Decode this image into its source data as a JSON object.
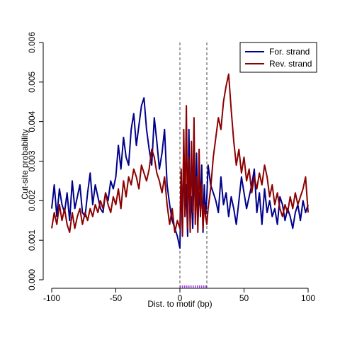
{
  "chart_data": {
    "type": "line",
    "title": "",
    "xlabel": "Dist. to motif (bp)",
    "ylabel": "Cut-site probability",
    "xlim": [
      -100,
      100
    ],
    "ylim": [
      0,
      0.006
    ],
    "xticks": [
      -100,
      -50,
      0,
      50,
      100
    ],
    "xtick_labels": [
      "-100",
      "-50",
      "0",
      "50",
      "100"
    ],
    "yticks": [
      0,
      0.001,
      0.002,
      0.003,
      0.004,
      0.005,
      0.006
    ],
    "ytick_labels": [
      "0.000",
      "0.001",
      "0.002",
      "0.003",
      "0.004",
      "0.005",
      "0.006"
    ],
    "grid": false,
    "legend_position": "top-right",
    "vlines": [
      0,
      21
    ],
    "motif_range": [
      0,
      21
    ],
    "series": [
      {
        "name": "For. strand",
        "color": "#00008b",
        "x": [
          -100,
          -98,
          -96,
          -94,
          -92,
          -90,
          -88,
          -86,
          -84,
          -82,
          -80,
          -78,
          -76,
          -74,
          -72,
          -70,
          -68,
          -66,
          -64,
          -62,
          -60,
          -58,
          -56,
          -54,
          -52,
          -50,
          -48,
          -46,
          -44,
          -42,
          -40,
          -38,
          -36,
          -34,
          -32,
          -30,
          -28,
          -26,
          -24,
          -22,
          -20,
          -18,
          -16,
          -14,
          -12,
          -10,
          -8,
          -6,
          -4,
          -2,
          0,
          1,
          2,
          3,
          4,
          5,
          6,
          7,
          8,
          9,
          10,
          11,
          12,
          13,
          14,
          15,
          16,
          17,
          18,
          19,
          20,
          21,
          22,
          24,
          26,
          28,
          30,
          32,
          34,
          36,
          38,
          40,
          42,
          44,
          46,
          48,
          50,
          52,
          54,
          56,
          58,
          60,
          62,
          64,
          66,
          68,
          70,
          72,
          74,
          76,
          78,
          80,
          82,
          84,
          86,
          88,
          90,
          92,
          94,
          96,
          98,
          100
        ],
        "y": [
          0.0018,
          0.0024,
          0.0016,
          0.0023,
          0.0019,
          0.0017,
          0.0022,
          0.0015,
          0.0025,
          0.0018,
          0.0021,
          0.0024,
          0.0017,
          0.0016,
          0.0022,
          0.0027,
          0.0019,
          0.0024,
          0.0021,
          0.0018,
          0.0017,
          0.0022,
          0.002,
          0.0025,
          0.0023,
          0.0026,
          0.0034,
          0.0028,
          0.0036,
          0.0031,
          0.0029,
          0.0038,
          0.0042,
          0.0034,
          0.0039,
          0.0044,
          0.0046,
          0.0038,
          0.0033,
          0.0029,
          0.0041,
          0.0035,
          0.0028,
          0.0032,
          0.0038,
          0.0024,
          0.0019,
          0.0015,
          0.0013,
          0.0011,
          0.0008,
          0.0027,
          0.0012,
          0.0034,
          0.0016,
          0.0024,
          0.0011,
          0.0038,
          0.0015,
          0.0021,
          0.0013,
          0.0028,
          0.0019,
          0.0032,
          0.0014,
          0.0022,
          0.0018,
          0.0029,
          0.0012,
          0.0024,
          0.0016,
          0.0021,
          0.0029,
          0.0024,
          0.0022,
          0.002,
          0.0017,
          0.0026,
          0.0019,
          0.0022,
          0.0016,
          0.0021,
          0.0018,
          0.0014,
          0.002,
          0.0026,
          0.0022,
          0.0018,
          0.0021,
          0.0024,
          0.0028,
          0.0017,
          0.0022,
          0.0014,
          0.0023,
          0.0017,
          0.002,
          0.0016,
          0.0018,
          0.0014,
          0.0021,
          0.0019,
          0.0015,
          0.0018,
          0.0016,
          0.0013,
          0.0017,
          0.0019,
          0.0015,
          0.002,
          0.0017,
          0.0019
        ]
      },
      {
        "name": "Rev. strand",
        "color": "#8b0000",
        "x": [
          -100,
          -98,
          -96,
          -94,
          -92,
          -90,
          -88,
          -86,
          -84,
          -82,
          -80,
          -78,
          -76,
          -74,
          -72,
          -70,
          -68,
          -66,
          -64,
          -62,
          -60,
          -58,
          -56,
          -54,
          -52,
          -50,
          -48,
          -46,
          -44,
          -42,
          -40,
          -38,
          -36,
          -34,
          -32,
          -30,
          -28,
          -26,
          -24,
          -22,
          -20,
          -18,
          -16,
          -14,
          -12,
          -10,
          -8,
          -6,
          -4,
          -2,
          0,
          1,
          2,
          3,
          4,
          5,
          6,
          7,
          8,
          9,
          10,
          11,
          12,
          13,
          14,
          15,
          16,
          17,
          18,
          19,
          20,
          21,
          22,
          24,
          26,
          28,
          30,
          32,
          34,
          36,
          38,
          40,
          42,
          44,
          46,
          48,
          50,
          52,
          54,
          56,
          58,
          60,
          62,
          64,
          66,
          68,
          70,
          72,
          74,
          76,
          78,
          80,
          82,
          84,
          86,
          88,
          90,
          92,
          94,
          96,
          98,
          100
        ],
        "y": [
          0.0013,
          0.0017,
          0.0014,
          0.0019,
          0.0015,
          0.0018,
          0.0014,
          0.0012,
          0.0017,
          0.0013,
          0.0016,
          0.0018,
          0.0014,
          0.0017,
          0.0015,
          0.0018,
          0.0016,
          0.0019,
          0.0017,
          0.002,
          0.0018,
          0.0022,
          0.0019,
          0.0017,
          0.0021,
          0.0019,
          0.0023,
          0.0018,
          0.0025,
          0.0021,
          0.0026,
          0.0024,
          0.0028,
          0.0026,
          0.0023,
          0.0029,
          0.0027,
          0.0025,
          0.0028,
          0.0033,
          0.0031,
          0.0027,
          0.0025,
          0.0022,
          0.0026,
          0.0019,
          0.0014,
          0.0018,
          0.0012,
          0.0015,
          0.0013,
          0.0028,
          0.0011,
          0.0038,
          0.0016,
          0.0044,
          0.0013,
          0.0031,
          0.0012,
          0.0035,
          0.0017,
          0.0041,
          0.0014,
          0.0026,
          0.0012,
          0.0033,
          0.0016,
          0.0024,
          0.0013,
          0.0019,
          0.0016,
          0.0014,
          0.0018,
          0.0023,
          0.0031,
          0.0036,
          0.0041,
          0.0038,
          0.0045,
          0.0049,
          0.0052,
          0.0043,
          0.0035,
          0.0029,
          0.0033,
          0.0027,
          0.0031,
          0.0025,
          0.0028,
          0.0022,
          0.0026,
          0.0023,
          0.0027,
          0.0024,
          0.0029,
          0.0026,
          0.0021,
          0.0024,
          0.0019,
          0.0022,
          0.0018,
          0.0016,
          0.0019,
          0.0017,
          0.0021,
          0.0018,
          0.0022,
          0.0019,
          0.0021,
          0.0023,
          0.0026,
          0.0017
        ]
      }
    ]
  }
}
